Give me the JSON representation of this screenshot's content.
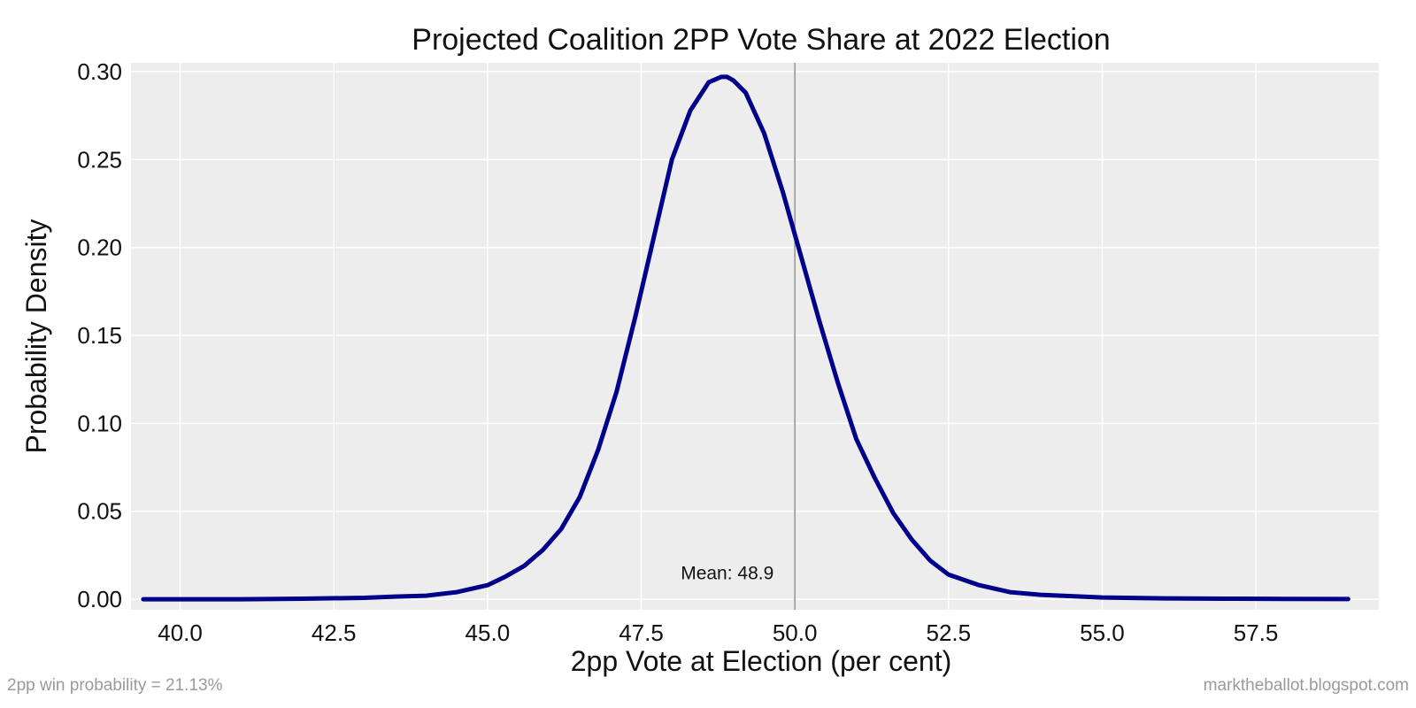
{
  "chart_data": {
    "type": "line",
    "title": "Projected Coalition 2PP Vote Share at 2022 Election",
    "xlabel": "2pp Vote at Election (per cent)",
    "ylabel": "Probability Density",
    "xlim": [
      39.2,
      59.5
    ],
    "ylim": [
      -0.006,
      0.305
    ],
    "xticks": [
      40.0,
      42.5,
      45.0,
      47.5,
      50.0,
      52.5,
      55.0,
      57.5
    ],
    "xtick_labels": [
      "40.0",
      "42.5",
      "45.0",
      "47.5",
      "50.0",
      "52.5",
      "55.0",
      "57.5"
    ],
    "yticks": [
      0.0,
      0.05,
      0.1,
      0.15,
      0.2,
      0.25,
      0.3
    ],
    "ytick_labels": [
      "0.00",
      "0.05",
      "0.10",
      "0.15",
      "0.20",
      "0.25",
      "0.30"
    ],
    "grid": true,
    "vline": {
      "x": 50.0,
      "color": "#999999"
    },
    "annotation": {
      "text": "Mean: 48.9",
      "x": 48.9,
      "y": 0.015
    },
    "series": [
      {
        "color": "#00008b",
        "x": [
          39.4,
          40.0,
          41.0,
          42.0,
          43.0,
          43.5,
          44.0,
          44.5,
          45.0,
          45.3,
          45.6,
          45.9,
          46.2,
          46.5,
          46.8,
          47.1,
          47.4,
          47.7,
          48.0,
          48.3,
          48.6,
          48.8,
          48.9,
          49.0,
          49.2,
          49.5,
          49.8,
          50.1,
          50.4,
          50.7,
          51.0,
          51.3,
          51.6,
          51.9,
          52.2,
          52.5,
          53.0,
          53.5,
          54.0,
          55.0,
          56.0,
          57.0,
          58.0,
          59.0
        ],
        "y": [
          0.0,
          0.0,
          0.0,
          0.0003,
          0.0008,
          0.0015,
          0.002,
          0.004,
          0.008,
          0.013,
          0.019,
          0.028,
          0.04,
          0.058,
          0.085,
          0.118,
          0.16,
          0.205,
          0.25,
          0.278,
          0.294,
          0.297,
          0.297,
          0.295,
          0.288,
          0.265,
          0.232,
          0.195,
          0.158,
          0.123,
          0.091,
          0.069,
          0.049,
          0.034,
          0.022,
          0.014,
          0.008,
          0.004,
          0.0025,
          0.001,
          0.0005,
          0.0003,
          0.0002,
          0.0001
        ]
      }
    ]
  },
  "footer": {
    "left": "2pp win probability = 21.13%",
    "right": "marktheballot.blogspot.com"
  }
}
